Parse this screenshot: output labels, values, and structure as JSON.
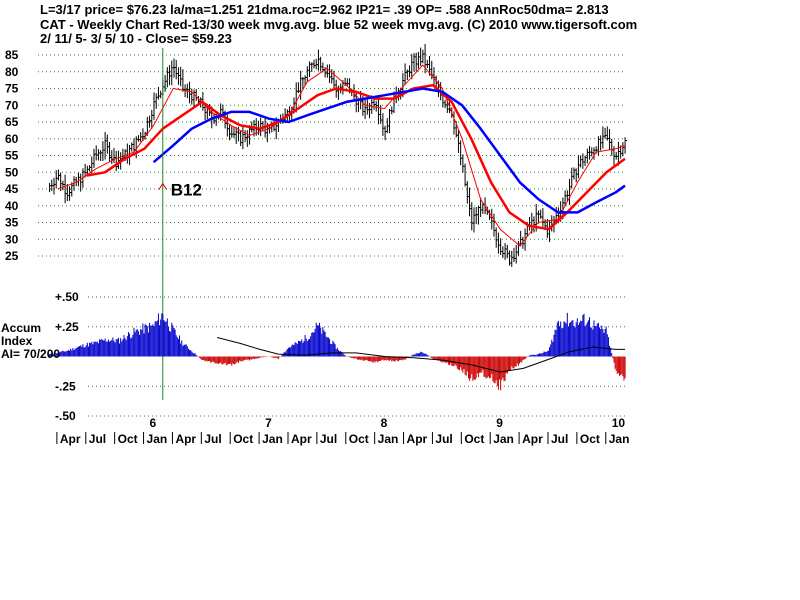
{
  "header": {
    "line1": "L=3/17  price= $76.23  la/ma=1.251 21dma.roc=2.962 IP21= .39 OP= .588 AnnRoc50dma= 2.813",
    "line2": "CAT  - Weekly Chart  Red-13/30 week mvg.avg.  blue 52 week mvg.avg.  (C) 2010 www.tigersoft.com",
    "line3": " 2/ 11/ 5- 3/ 5/ 10 -     Close= $59.23"
  },
  "chart_data": [
    {
      "type": "line",
      "title": "",
      "xlabel": "",
      "ylabel": "",
      "ylim": [
        25,
        87
      ],
      "yticks": [
        85,
        80,
        75,
        70,
        65,
        60,
        55,
        50,
        45,
        40,
        35,
        30,
        25
      ],
      "grid": true,
      "x_start": "2005-02-11",
      "x_end": "2010-03-05",
      "year_ticks": [
        {
          "label": "6",
          "x": 2006.0
        },
        {
          "label": "7",
          "x": 2007.0
        },
        {
          "label": "8",
          "x": 2008.0
        },
        {
          "label": "9",
          "x": 2009.0
        },
        {
          "label": "10",
          "x": 2010.0
        }
      ],
      "month_labels": [
        {
          "label": "Apr",
          "x": 2005.25
        },
        {
          "label": "Jul",
          "x": 2005.5
        },
        {
          "label": "Oct",
          "x": 2005.75
        },
        {
          "label": "Jan",
          "x": 2006.0
        },
        {
          "label": "Apr",
          "x": 2006.25
        },
        {
          "label": "Jul",
          "x": 2006.5
        },
        {
          "label": "Oct",
          "x": 2006.75
        },
        {
          "label": "Jan",
          "x": 2007.0
        },
        {
          "label": "Apr",
          "x": 2007.25
        },
        {
          "label": "Jul",
          "x": 2007.5
        },
        {
          "label": "Oct",
          "x": 2007.75
        },
        {
          "label": "Jan",
          "x": 2008.0
        },
        {
          "label": "Apr",
          "x": 2008.25
        },
        {
          "label": "Jul",
          "x": 2008.5
        },
        {
          "label": "Oct",
          "x": 2008.75
        },
        {
          "label": "Jan",
          "x": 2009.0
        },
        {
          "label": "Apr",
          "x": 2009.25
        },
        {
          "label": "Jul",
          "x": 2009.5
        },
        {
          "label": "Oct",
          "x": 2009.75
        },
        {
          "label": "Jan",
          "x": 2010.0
        }
      ],
      "price_path": [
        [
          2005.1,
          46
        ],
        [
          2005.17,
          49
        ],
        [
          2005.25,
          44
        ],
        [
          2005.33,
          47
        ],
        [
          2005.42,
          50
        ],
        [
          2005.5,
          55
        ],
        [
          2005.58,
          58
        ],
        [
          2005.67,
          53
        ],
        [
          2005.75,
          55
        ],
        [
          2005.83,
          58
        ],
        [
          2005.92,
          62
        ],
        [
          2006.0,
          70
        ],
        [
          2006.08,
          76
        ],
        [
          2006.17,
          82
        ],
        [
          2006.25,
          75
        ],
        [
          2006.33,
          73
        ],
        [
          2006.42,
          70
        ],
        [
          2006.5,
          66
        ],
        [
          2006.58,
          68
        ],
        [
          2006.67,
          62
        ],
        [
          2006.75,
          60
        ],
        [
          2006.83,
          62
        ],
        [
          2006.92,
          64
        ],
        [
          2007.0,
          62
        ],
        [
          2007.08,
          65
        ],
        [
          2007.17,
          68
        ],
        [
          2007.25,
          75
        ],
        [
          2007.33,
          80
        ],
        [
          2007.42,
          84
        ],
        [
          2007.5,
          80
        ],
        [
          2007.58,
          75
        ],
        [
          2007.67,
          76
        ],
        [
          2007.75,
          72
        ],
        [
          2007.83,
          68
        ],
        [
          2007.92,
          72
        ],
        [
          2008.0,
          62
        ],
        [
          2008.08,
          72
        ],
        [
          2008.17,
          78
        ],
        [
          2008.25,
          83
        ],
        [
          2008.33,
          84
        ],
        [
          2008.42,
          78
        ],
        [
          2008.5,
          72
        ],
        [
          2008.58,
          68
        ],
        [
          2008.67,
          52
        ],
        [
          2008.75,
          35
        ],
        [
          2008.83,
          40
        ],
        [
          2008.92,
          35
        ],
        [
          2009.0,
          28
        ],
        [
          2009.08,
          24
        ],
        [
          2009.17,
          28
        ],
        [
          2009.25,
          34
        ],
        [
          2009.33,
          37
        ],
        [
          2009.42,
          32
        ],
        [
          2009.5,
          38
        ],
        [
          2009.58,
          44
        ],
        [
          2009.67,
          52
        ],
        [
          2009.75,
          55
        ],
        [
          2009.83,
          58
        ],
        [
          2009.92,
          60
        ],
        [
          2010.0,
          55
        ],
        [
          2010.08,
          59
        ]
      ],
      "series": [
        {
          "color": "#ff0000",
          "values": [
            [
              2005.17,
              45
            ],
            [
              2005.33,
              47
            ],
            [
              2005.5,
              51
            ],
            [
              2005.67,
              54
            ],
            [
              2005.83,
              56
            ],
            [
              2006.0,
              64
            ],
            [
              2006.17,
              75
            ],
            [
              2006.33,
              74
            ],
            [
              2006.5,
              68
            ],
            [
              2006.67,
              64
            ],
            [
              2006.83,
              61
            ],
            [
              2007.0,
              63
            ],
            [
              2007.17,
              67
            ],
            [
              2007.33,
              77
            ],
            [
              2007.5,
              81
            ],
            [
              2007.67,
              76
            ],
            [
              2007.83,
              70
            ],
            [
              2008.0,
              69
            ],
            [
              2008.17,
              76
            ],
            [
              2008.33,
              82
            ],
            [
              2008.5,
              75
            ],
            [
              2008.67,
              60
            ],
            [
              2008.83,
              42
            ],
            [
              2009.0,
              33
            ],
            [
              2009.17,
              28
            ],
            [
              2009.33,
              35
            ],
            [
              2009.5,
              36
            ],
            [
              2009.67,
              47
            ],
            [
              2009.83,
              56
            ],
            [
              2010.0,
              57
            ],
            [
              2010.08,
              58
            ]
          ]
        },
        {
          "color": "#ff0000",
          "values": [
            [
              2005.42,
              49
            ],
            [
              2005.58,
              50
            ],
            [
              2005.75,
              54
            ],
            [
              2005.92,
              57
            ],
            [
              2006.08,
              63
            ],
            [
              2006.25,
              67
            ],
            [
              2006.42,
              71
            ],
            [
              2006.58,
              67
            ],
            [
              2006.75,
              64
            ],
            [
              2006.92,
              63
            ],
            [
              2007.08,
              65
            ],
            [
              2007.25,
              69
            ],
            [
              2007.42,
              73
            ],
            [
              2007.58,
              75
            ],
            [
              2007.75,
              74
            ],
            [
              2007.92,
              72
            ],
            [
              2008.08,
              72
            ],
            [
              2008.25,
              75
            ],
            [
              2008.42,
              76
            ],
            [
              2008.58,
              71
            ],
            [
              2008.75,
              60
            ],
            [
              2008.92,
              47
            ],
            [
              2009.08,
              38
            ],
            [
              2009.25,
              34
            ],
            [
              2009.42,
              33
            ],
            [
              2009.58,
              38
            ],
            [
              2009.75,
              44
            ],
            [
              2009.92,
              50
            ],
            [
              2010.08,
              54
            ]
          ]
        },
        {
          "color": "#0000ff",
          "values": [
            [
              2006.0,
              53
            ],
            [
              2006.17,
              58
            ],
            [
              2006.33,
              63
            ],
            [
              2006.5,
              66
            ],
            [
              2006.67,
              68
            ],
            [
              2006.83,
              68
            ],
            [
              2007.0,
              66
            ],
            [
              2007.17,
              65
            ],
            [
              2007.33,
              67
            ],
            [
              2007.5,
              69
            ],
            [
              2007.67,
              71
            ],
            [
              2007.83,
              72
            ],
            [
              2008.0,
              73
            ],
            [
              2008.17,
              74
            ],
            [
              2008.33,
              75
            ],
            [
              2008.5,
              74
            ],
            [
              2008.67,
              70
            ],
            [
              2008.83,
              63
            ],
            [
              2009.0,
              55
            ],
            [
              2009.17,
              47
            ],
            [
              2009.33,
              42
            ],
            [
              2009.5,
              38
            ],
            [
              2009.67,
              38
            ],
            [
              2009.83,
              41
            ],
            [
              2010.0,
              44
            ],
            [
              2010.08,
              46
            ]
          ]
        }
      ],
      "annotations": [
        {
          "text": "B12",
          "x": 2006.08,
          "y": 49,
          "color": "#000000"
        }
      ],
      "signal_line_x": 2006.08
    },
    {
      "type": "bar",
      "title": "",
      "ylabel_lines": [
        "Accum",
        "Index",
        "AI= 70/200"
      ],
      "ylim": [
        -0.5,
        0.5
      ],
      "yticks": [
        {
          "label": "+.50",
          "v": 0.5
        },
        {
          "label": "+.25",
          "v": 0.25
        },
        {
          "label": "-.25",
          "v": -0.25
        },
        {
          "label": "-.50",
          "v": -0.5
        }
      ],
      "positive_color": "#0000cc",
      "negative_color": "#cc0000",
      "values": [
        [
          2005.1,
          0.02
        ],
        [
          2005.25,
          0.05
        ],
        [
          2005.4,
          0.1
        ],
        [
          2005.5,
          0.12
        ],
        [
          2005.6,
          0.15
        ],
        [
          2005.7,
          0.14
        ],
        [
          2005.8,
          0.2
        ],
        [
          2005.9,
          0.24
        ],
        [
          2006.0,
          0.27
        ],
        [
          2006.08,
          0.37
        ],
        [
          2006.17,
          0.23
        ],
        [
          2006.25,
          0.12
        ],
        [
          2006.33,
          0.05
        ],
        [
          2006.42,
          -0.03
        ],
        [
          2006.5,
          -0.05
        ],
        [
          2006.58,
          -0.06
        ],
        [
          2006.67,
          -0.08
        ],
        [
          2006.75,
          -0.04
        ],
        [
          2006.83,
          -0.03
        ],
        [
          2006.92,
          -0.01
        ],
        [
          2007.0,
          0.0
        ],
        [
          2007.08,
          -0.02
        ],
        [
          2007.17,
          0.08
        ],
        [
          2007.25,
          0.12
        ],
        [
          2007.33,
          0.17
        ],
        [
          2007.42,
          0.27
        ],
        [
          2007.5,
          0.18
        ],
        [
          2007.58,
          0.08
        ],
        [
          2007.67,
          0.0
        ],
        [
          2007.75,
          -0.02
        ],
        [
          2007.83,
          -0.04
        ],
        [
          2007.92,
          -0.05
        ],
        [
          2008.0,
          -0.03
        ],
        [
          2008.08,
          -0.04
        ],
        [
          2008.17,
          -0.03
        ],
        [
          2008.25,
          0.02
        ],
        [
          2008.33,
          0.04
        ],
        [
          2008.42,
          -0.02
        ],
        [
          2008.5,
          -0.05
        ],
        [
          2008.58,
          -0.07
        ],
        [
          2008.67,
          -0.12
        ],
        [
          2008.75,
          -0.2
        ],
        [
          2008.83,
          -0.14
        ],
        [
          2008.92,
          -0.18
        ],
        [
          2009.0,
          -0.26
        ],
        [
          2009.08,
          -0.12
        ],
        [
          2009.17,
          -0.06
        ],
        [
          2009.25,
          0.01
        ],
        [
          2009.33,
          0.02
        ],
        [
          2009.42,
          0.05
        ],
        [
          2009.5,
          0.3
        ],
        [
          2009.58,
          0.32
        ],
        [
          2009.67,
          0.3
        ],
        [
          2009.75,
          0.33
        ],
        [
          2009.83,
          0.26
        ],
        [
          2009.92,
          0.22
        ],
        [
          2010.0,
          -0.12
        ],
        [
          2010.08,
          -0.22
        ]
      ],
      "ma_line": [
        [
          2006.55,
          0.16
        ],
        [
          2006.75,
          0.11
        ],
        [
          2006.92,
          0.06
        ],
        [
          2007.08,
          0.02
        ],
        [
          2007.3,
          0.01
        ],
        [
          2007.55,
          0.03
        ],
        [
          2007.75,
          0.03
        ],
        [
          2008.0,
          0.0
        ],
        [
          2008.25,
          -0.01
        ],
        [
          2008.5,
          -0.03
        ],
        [
          2008.75,
          -0.07
        ],
        [
          2009.0,
          -0.13
        ],
        [
          2009.2,
          -0.1
        ],
        [
          2009.4,
          -0.03
        ],
        [
          2009.6,
          0.04
        ],
        [
          2009.8,
          0.08
        ],
        [
          2010.0,
          0.06
        ],
        [
          2010.08,
          0.06
        ]
      ],
      "signal_line_x": 2006.08
    }
  ]
}
